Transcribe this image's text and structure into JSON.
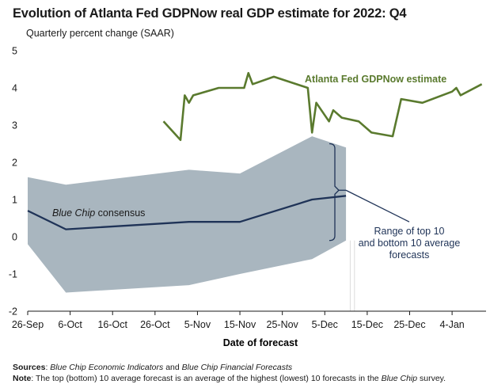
{
  "header": {
    "title": "Evolution of Atlanta Fed GDPNow real GDP estimate for 2022: Q4",
    "subtitle": "Quarterly percent change (SAAR)"
  },
  "notes": {
    "sources_label": "Sources",
    "sources_text_1": "Blue Chip Economic Indicators",
    "sources_and": " and ",
    "sources_text_2": "Blue Chip Financial Forecasts",
    "note_label": "Note",
    "note_text_1": ": The top (bottom) 10 average forecast is an average of the highest (lowest) 10 forecasts in the ",
    "note_italic": "Blue Chip",
    "note_text_2": " survey."
  },
  "colors": {
    "gdpnow_line": "#5a7a2e",
    "consensus_line": "#1f3357",
    "range_band": "#a9b6bf",
    "bracket": "#1f3357"
  },
  "chart_data": {
    "type": "line",
    "title": "Evolution of Atlanta Fed GDPNow real GDP estimate for 2022: Q4",
    "subtitle": "Quarterly percent change (SAAR)",
    "xlabel": "Date of forecast",
    "ylabel": "",
    "x_ticks": [
      "26-Sep",
      "6-Oct",
      "16-Oct",
      "26-Oct",
      "5-Nov",
      "15-Nov",
      "25-Nov",
      "5-Dec",
      "15-Dec",
      "25-Dec",
      "4-Jan"
    ],
    "y_ticks": [
      "-2",
      "-1",
      "0",
      "1",
      "2",
      "3",
      "4",
      "5"
    ],
    "ylim": [
      -2,
      5
    ],
    "grid": false,
    "series": [
      {
        "name": "Atlanta Fed GDPNow estimate",
        "x": [
          "2022-10-28",
          "2022-11-01",
          "2022-11-02",
          "2022-11-03",
          "2022-11-04",
          "2022-11-10",
          "2022-11-16",
          "2022-11-17",
          "2022-11-18",
          "2022-11-23",
          "2022-12-01",
          "2022-12-02",
          "2022-12-03",
          "2022-12-06",
          "2022-12-07",
          "2022-12-09",
          "2022-12-13",
          "2022-12-16",
          "2022-12-21",
          "2022-12-23",
          "2022-12-28",
          "2023-01-04",
          "2023-01-05",
          "2023-01-06",
          "2023-01-11"
        ],
        "y": [
          3.1,
          2.6,
          3.8,
          3.6,
          3.8,
          4.0,
          4.0,
          4.4,
          4.1,
          4.3,
          4.0,
          2.8,
          3.6,
          3.1,
          3.4,
          3.2,
          3.1,
          2.8,
          2.7,
          3.7,
          3.6,
          3.9,
          4.0,
          3.8,
          4.1
        ]
      },
      {
        "name": "Blue Chip consensus",
        "x": [
          "2022-09-26",
          "2022-10-05",
          "2022-11-03",
          "2022-11-15",
          "2022-12-02",
          "2022-12-10"
        ],
        "y": [
          0.7,
          0.2,
          0.4,
          0.4,
          1.0,
          1.1
        ]
      },
      {
        "name": "Range of top 10 and bottom 10 average forecasts",
        "x": [
          "2022-09-26",
          "2022-10-05",
          "2022-11-03",
          "2022-11-15",
          "2022-12-02",
          "2022-12-10"
        ],
        "upper": [
          1.6,
          1.4,
          1.8,
          1.7,
          2.7,
          2.4
        ],
        "lower": [
          -0.2,
          -1.5,
          -1.3,
          -1.0,
          -0.6,
          -0.1
        ]
      }
    ],
    "annotations": [
      "Atlanta Fed GDPNow estimate",
      "Blue Chip consensus",
      "Range of top 10 and bottom 10 average forecasts"
    ]
  }
}
